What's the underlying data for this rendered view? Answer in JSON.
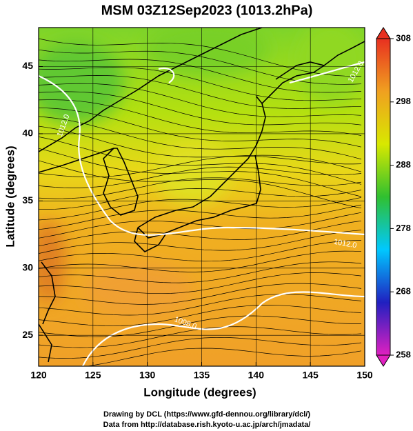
{
  "map": {
    "title": "MSM 03Z12Sep2023 (1013.2hPa)",
    "x_label": "Longitude (degrees)",
    "y_label": "Latitude  (degrees)",
    "xlim": [
      120,
      150
    ],
    "ylim": [
      22.7,
      47.9
    ],
    "xticks": [
      120,
      125,
      130,
      135,
      140,
      145,
      150
    ],
    "yticks": [
      25,
      30,
      35,
      40,
      45
    ],
    "grid": true,
    "colorbar": {
      "range": [
        258,
        308
      ],
      "ticks": [
        258,
        268,
        278,
        288,
        298,
        308
      ],
      "colors": [
        "#e020c0",
        "#2020c0",
        "#00c8ff",
        "#30c030",
        "#d8e800",
        "#f0a020",
        "#e83020"
      ]
    },
    "contour_labels": [
      {
        "text": "1012.0",
        "lon": 122.3,
        "lat": 40.6,
        "angle": -70
      },
      {
        "text": "1012.0",
        "lon": 148.2,
        "lat": 31.8,
        "angle": 10
      },
      {
        "text": "1008.0",
        "lon": 133.5,
        "lat": 25.9,
        "angle": 20
      },
      {
        "text": "1012.0",
        "lon": 149.2,
        "lat": 44.6,
        "angle": -60
      }
    ],
    "footer": [
      "Drawing by DCL (https://www.gfd-dennou.org/library/dcl/)",
      "Data from http://database.rish.kyoto-u.ac.jp/arch/jmadata/"
    ]
  }
}
